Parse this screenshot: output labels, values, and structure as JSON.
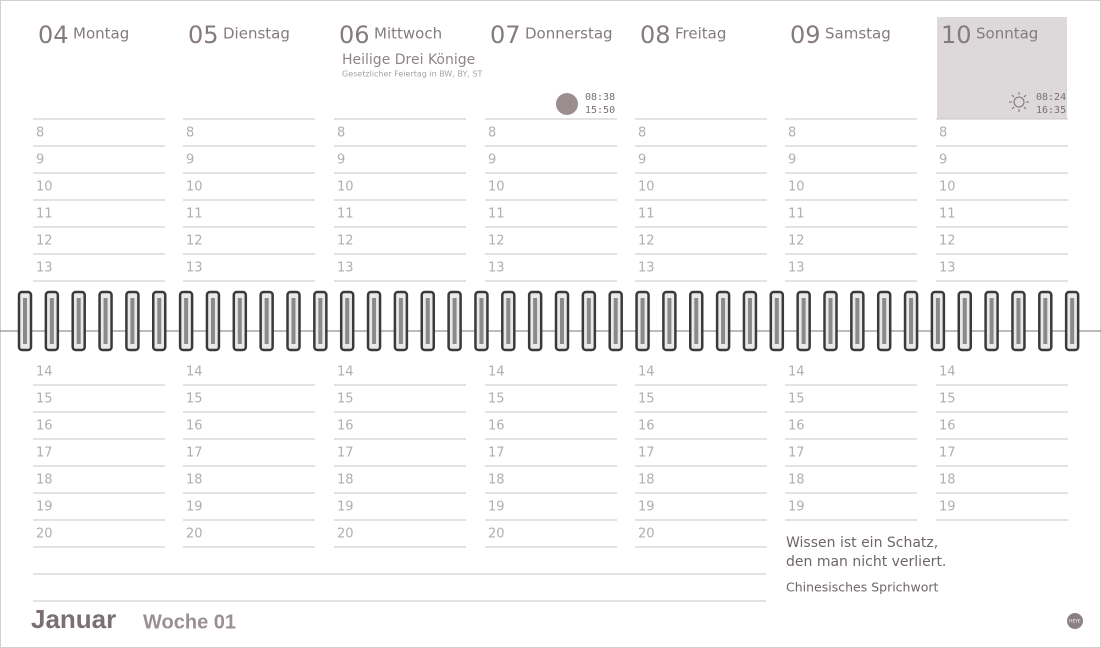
{
  "days": [
    {
      "number": "04",
      "name": "Montag",
      "morning": [
        "8",
        "9",
        "10",
        "11",
        "12",
        "13"
      ],
      "afternoon": [
        "14",
        "15",
        "16",
        "17",
        "18",
        "19",
        "20"
      ]
    },
    {
      "number": "05",
      "name": "Dienstag",
      "morning": [
        "8",
        "9",
        "10",
        "11",
        "12",
        "13"
      ],
      "afternoon": [
        "14",
        "15",
        "16",
        "17",
        "18",
        "19",
        "20"
      ]
    },
    {
      "number": "06",
      "name": "Mittwoch",
      "holiday": {
        "title": "Heilige Drei Könige",
        "note": "Gesetzlicher Feiertag in BW, BY, ST"
      },
      "morning": [
        "8",
        "9",
        "10",
        "11",
        "12",
        "13"
      ],
      "afternoon": [
        "14",
        "15",
        "16",
        "17",
        "18",
        "19",
        "20"
      ]
    },
    {
      "number": "07",
      "name": "Donnerstag",
      "moon": {
        "rise": "08:38",
        "set": "15:50"
      },
      "morning": [
        "8",
        "9",
        "10",
        "11",
        "12",
        "13"
      ],
      "afternoon": [
        "14",
        "15",
        "16",
        "17",
        "18",
        "19",
        "20"
      ]
    },
    {
      "number": "08",
      "name": "Freitag",
      "morning": [
        "8",
        "9",
        "10",
        "11",
        "12",
        "13"
      ],
      "afternoon": [
        "14",
        "15",
        "16",
        "17",
        "18",
        "19",
        "20"
      ]
    },
    {
      "number": "09",
      "name": "Samstag",
      "morning": [
        "8",
        "9",
        "10",
        "11",
        "12",
        "13"
      ],
      "afternoon": [
        "14",
        "15",
        "16",
        "17",
        "18",
        "19"
      ]
    },
    {
      "number": "10",
      "name": "Sonntag",
      "sun": {
        "rise": "08:24",
        "set": "16:35"
      },
      "morning": [
        "8",
        "9",
        "10",
        "11",
        "12",
        "13"
      ],
      "afternoon": [
        "14",
        "15",
        "16",
        "17",
        "18",
        "19"
      ]
    }
  ],
  "quote": {
    "lines": [
      "Wissen ist ein Schatz,",
      "den man nicht verliert."
    ],
    "source": "Chinesisches Sprichwort"
  },
  "footer": {
    "month": "Januar",
    "week": "Woche 01",
    "logo": "HEYE"
  }
}
